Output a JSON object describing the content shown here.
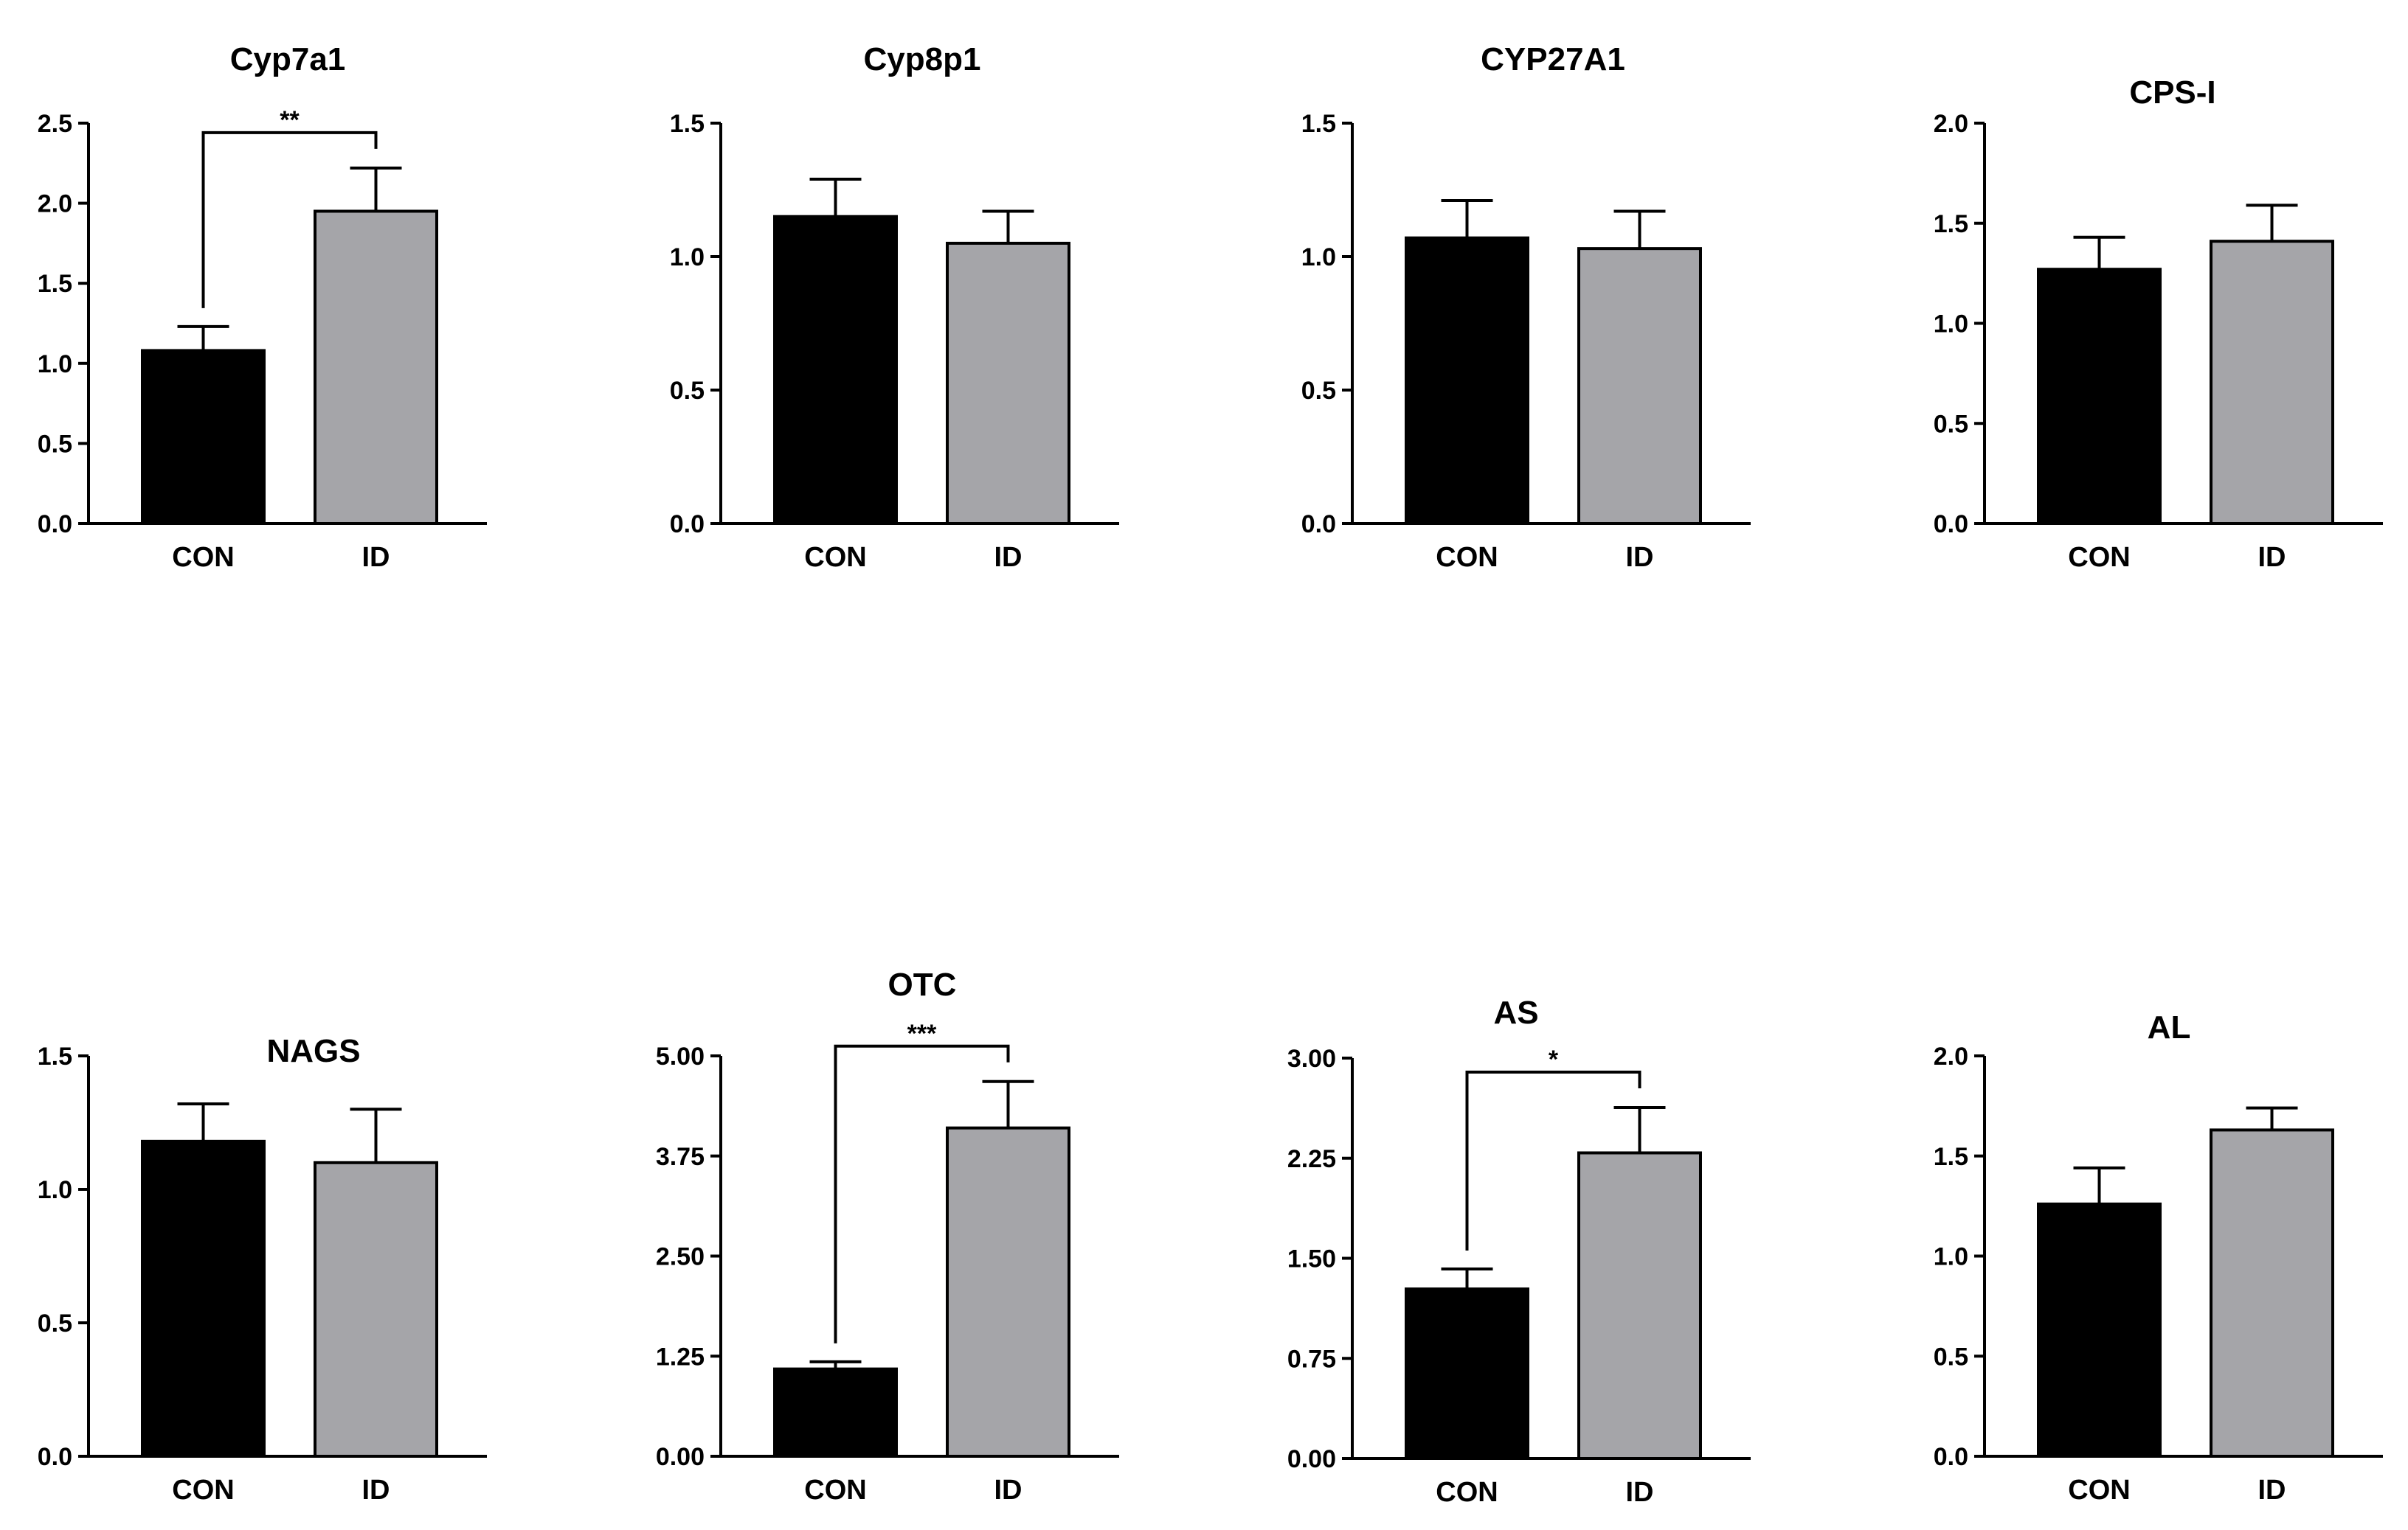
{
  "colors": {
    "con_bar": "#000000",
    "id_bar": "#a5a5a9",
    "axis": "#000000",
    "background": "#ffffff"
  },
  "chart_data": [
    {
      "type": "bar",
      "title": "Cyp7a1",
      "categories": [
        "CON",
        "ID"
      ],
      "values": [
        1.08,
        1.95
      ],
      "errors": [
        0.15,
        0.27
      ],
      "ylim": [
        0,
        2.5
      ],
      "yticks": [
        "0.0",
        "0.5",
        "1.0",
        "1.5",
        "2.0",
        "2.5"
      ],
      "significance": "**"
    },
    {
      "type": "bar",
      "title": "Cyp8p1",
      "categories": [
        "CON",
        "ID"
      ],
      "values": [
        1.15,
        1.05
      ],
      "errors": [
        0.14,
        0.12
      ],
      "ylim": [
        0,
        1.5
      ],
      "yticks": [
        "0.0",
        "0.5",
        "1.0",
        "1.5"
      ],
      "significance": null
    },
    {
      "type": "bar",
      "title": "CYP27A1",
      "categories": [
        "CON",
        "ID"
      ],
      "values": [
        1.07,
        1.03
      ],
      "errors": [
        0.14,
        0.14
      ],
      "ylim": [
        0,
        1.5
      ],
      "yticks": [
        "0.0",
        "0.5",
        "1.0",
        "1.5"
      ],
      "significance": null
    },
    {
      "type": "bar",
      "title": "CPS-I",
      "categories": [
        "CON",
        "ID"
      ],
      "values": [
        1.27,
        1.41
      ],
      "errors": [
        0.16,
        0.18
      ],
      "ylim": [
        0,
        2.0
      ],
      "yticks": [
        "0.0",
        "0.5",
        "1.0",
        "1.5",
        "2.0"
      ],
      "significance": null
    },
    {
      "type": "bar",
      "title": "NAGS",
      "categories": [
        "CON",
        "ID"
      ],
      "values": [
        1.18,
        1.1
      ],
      "errors": [
        0.14,
        0.2
      ],
      "ylim": [
        0,
        1.5
      ],
      "yticks": [
        "0.0",
        "0.5",
        "1.0",
        "1.5"
      ],
      "significance": null
    },
    {
      "type": "bar",
      "title": "OTC",
      "categories": [
        "CON",
        "ID"
      ],
      "values": [
        1.09,
        4.1
      ],
      "errors": [
        0.09,
        0.58
      ],
      "ylim": [
        0,
        5.0
      ],
      "yticks": [
        "0.00",
        "1.25",
        "2.50",
        "3.75",
        "5.00"
      ],
      "significance": "***"
    },
    {
      "type": "bar",
      "title": "AS",
      "categories": [
        "CON",
        "ID"
      ],
      "values": [
        1.27,
        2.29
      ],
      "errors": [
        0.15,
        0.34
      ],
      "ylim": [
        0,
        3.0
      ],
      "yticks": [
        "0.00",
        "0.75",
        "1.50",
        "2.25",
        "3.00"
      ],
      "significance": "*"
    },
    {
      "type": "bar",
      "title": "AL",
      "categories": [
        "CON",
        "ID"
      ],
      "values": [
        1.26,
        1.63
      ],
      "errors": [
        0.18,
        0.11
      ],
      "ylim": [
        0,
        2.0
      ],
      "yticks": [
        "0.0",
        "0.5",
        "1.0",
        "1.5",
        "2.0"
      ],
      "significance": null
    }
  ]
}
